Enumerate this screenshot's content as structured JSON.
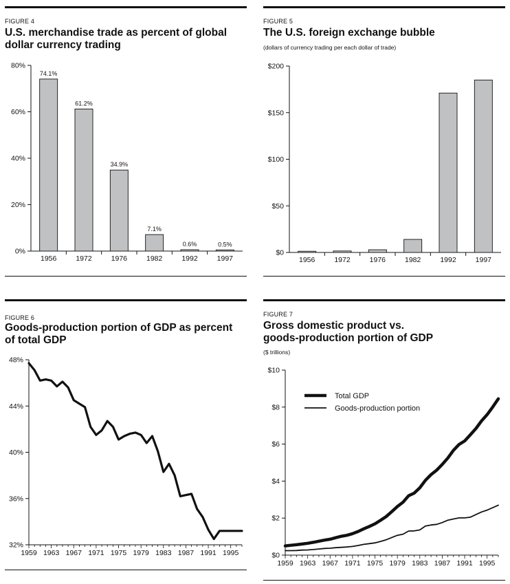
{
  "figures": [
    {
      "label": "FIGURE 4",
      "title_lines": [
        "U.S. merchandise trade as percent of global",
        "dollar currency trading"
      ],
      "subtitle": "",
      "chart_data": {
        "type": "bar",
        "categories": [
          "1956",
          "1972",
          "1976",
          "1982",
          "1992",
          "1997"
        ],
        "values": [
          74.1,
          61.2,
          34.9,
          7.1,
          0.6,
          0.5
        ],
        "value_labels": [
          "74.1%",
          "61.2%",
          "34.9%",
          "7.1%",
          "0.6%",
          "0.5%"
        ],
        "ylim": [
          0,
          80
        ],
        "yticks": [
          0,
          20,
          40,
          60,
          80
        ],
        "ytick_labels": [
          "0%",
          "20%",
          "40%",
          "60%",
          "80%"
        ],
        "xlabel": "",
        "ylabel": "",
        "bar_color": "#c0c1c3"
      }
    },
    {
      "label": "FIGURE 5",
      "title_lines": [
        "The U.S. foreign exchange bubble"
      ],
      "subtitle": "(dollars of currency trading per each dollar of trade)",
      "chart_data": {
        "type": "bar",
        "categories": [
          "1956",
          "1972",
          "1976",
          "1982",
          "1992",
          "1997"
        ],
        "values": [
          1.3,
          1.6,
          2.9,
          14,
          171,
          185
        ],
        "ylim": [
          0,
          200
        ],
        "yticks": [
          0,
          50,
          100,
          150,
          200
        ],
        "ytick_labels": [
          "$0",
          "$50",
          "$100",
          "$150",
          "$200"
        ],
        "xlabel": "",
        "ylabel": "",
        "bar_color": "#c0c1c3"
      }
    },
    {
      "label": "FIGURE 6",
      "title_lines": [
        "Goods-production portion of GDP as percent",
        "of total GDP"
      ],
      "subtitle": "",
      "chart_data": {
        "type": "line",
        "x": [
          1959,
          1960,
          1961,
          1962,
          1963,
          1964,
          1965,
          1966,
          1967,
          1968,
          1969,
          1970,
          1971,
          1972,
          1973,
          1974,
          1975,
          1976,
          1977,
          1978,
          1979,
          1980,
          1981,
          1982,
          1983,
          1984,
          1985,
          1986,
          1987,
          1988,
          1989,
          1990,
          1991,
          1992,
          1993,
          1994,
          1995,
          1996,
          1997
        ],
        "series": [
          {
            "values": [
              47.7,
              47.1,
              46.2,
              46.3,
              46.2,
              45.7,
              46.1,
              45.6,
              44.5,
              44.2,
              43.9,
              42.2,
              41.5,
              41.9,
              42.7,
              42.2,
              41.1,
              41.4,
              41.6,
              41.7,
              41.5,
              40.8,
              41.4,
              40.1,
              38.3,
              39.0,
              38.0,
              36.2,
              36.3,
              36.4,
              35.1,
              34.4,
              33.3,
              32.5,
              33.2,
              33.2,
              33.2,
              33.2,
              33.2
            ]
          }
        ],
        "xlim": [
          1959,
          1997
        ],
        "xticks": [
          1959,
          1963,
          1967,
          1971,
          1975,
          1979,
          1983,
          1987,
          1991,
          1995
        ],
        "ylim": [
          32,
          48
        ],
        "yticks": [
          32,
          36,
          40,
          44,
          48
        ],
        "ytick_labels": [
          "32%",
          "36%",
          "40%",
          "44%",
          "48%"
        ],
        "xlabel": "",
        "ylabel": ""
      }
    },
    {
      "label": "FIGURE 7",
      "title_lines": [
        "Gross domestic product vs.",
        "goods-production portion of GDP"
      ],
      "subtitle": "($ trillions)",
      "chart_data": {
        "type": "line",
        "x": [
          1959,
          1960,
          1961,
          1962,
          1963,
          1964,
          1965,
          1966,
          1967,
          1968,
          1969,
          1970,
          1971,
          1972,
          1973,
          1974,
          1975,
          1976,
          1977,
          1978,
          1979,
          1980,
          1981,
          1982,
          1983,
          1984,
          1985,
          1986,
          1987,
          1988,
          1989,
          1990,
          1991,
          1992,
          1993,
          1994,
          1995,
          1996,
          1997
        ],
        "series": [
          {
            "name": "Total GDP",
            "values": [
              0.5,
              0.53,
              0.56,
              0.6,
              0.64,
              0.69,
              0.75,
              0.81,
              0.86,
              0.94,
              1.02,
              1.07,
              1.16,
              1.28,
              1.42,
              1.55,
              1.69,
              1.88,
              2.08,
              2.35,
              2.63,
              2.86,
              3.21,
              3.35,
              3.64,
              4.04,
              4.35,
              4.59,
              4.9,
              5.25,
              5.66,
              5.98,
              6.17,
              6.5,
              6.84,
              7.25,
              7.59,
              8.0,
              8.45
            ]
          },
          {
            "name": "Goods-production portion",
            "values": [
              0.24,
              0.24,
              0.25,
              0.27,
              0.28,
              0.3,
              0.33,
              0.36,
              0.37,
              0.4,
              0.42,
              0.44,
              0.47,
              0.52,
              0.58,
              0.62,
              0.66,
              0.74,
              0.83,
              0.95,
              1.07,
              1.13,
              1.3,
              1.31,
              1.36,
              1.57,
              1.63,
              1.66,
              1.76,
              1.89,
              1.95,
              2.01,
              2.01,
              2.05,
              2.19,
              2.33,
              2.43,
              2.56,
              2.7
            ]
          }
        ],
        "xlim": [
          1959,
          1997
        ],
        "xticks": [
          1959,
          1963,
          1967,
          1971,
          1975,
          1979,
          1983,
          1987,
          1991,
          1995
        ],
        "ylim": [
          0,
          10
        ],
        "yticks": [
          0,
          2,
          4,
          6,
          8,
          10
        ],
        "ytick_labels": [
          "$0",
          "$2",
          "$4",
          "$6",
          "$8",
          "$10"
        ],
        "xlabel": "",
        "ylabel": "",
        "legend_position": "top-left"
      }
    }
  ]
}
